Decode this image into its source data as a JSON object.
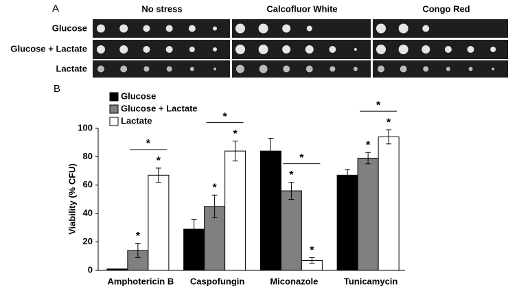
{
  "panel_a": {
    "label": "A",
    "columns": [
      "No stress",
      "Calcofluor White",
      "Congo Red"
    ],
    "rows": [
      "Glucose",
      "Glucose + Lactate",
      "Lactate"
    ]
  },
  "chart_data": {
    "type": "bar",
    "panel_label": "B",
    "ylabel": "Viability (% CFU)",
    "categories": [
      "Amphotericin B",
      "Caspofungin",
      "Miconazole",
      "Tunicamycin"
    ],
    "series": [
      {
        "name": "Glucose",
        "color": "#000000",
        "values": [
          1,
          29,
          84,
          67
        ],
        "errors": [
          0,
          7,
          9,
          4
        ]
      },
      {
        "name": "Glucose + Lactate",
        "color": "#808080",
        "values": [
          14,
          45,
          56,
          79
        ],
        "errors": [
          5,
          8,
          6,
          4
        ],
        "significance": [
          "*",
          "*",
          "*",
          "*"
        ]
      },
      {
        "name": "Lactate",
        "color": "#ffffff",
        "values": [
          67,
          84,
          7,
          94
        ],
        "errors": [
          5,
          7,
          2,
          5
        ],
        "significance": [
          "*",
          "*",
          "*",
          "*"
        ]
      }
    ],
    "brackets": [
      "*",
      "*",
      "*",
      "*"
    ],
    "ylim": [
      0,
      100
    ],
    "yticks": [
      0,
      20,
      40,
      60,
      80,
      100
    ],
    "grid": false
  }
}
